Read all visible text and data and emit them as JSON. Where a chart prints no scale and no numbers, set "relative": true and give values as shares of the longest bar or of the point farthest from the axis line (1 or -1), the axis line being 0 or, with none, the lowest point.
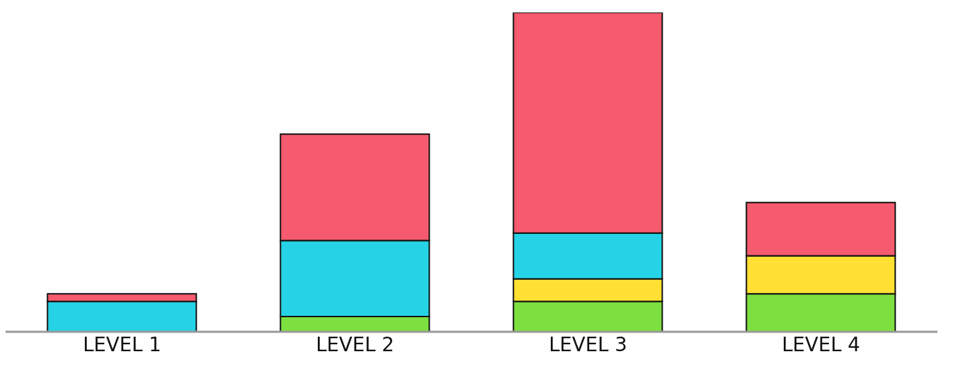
{
  "chart_data": {
    "type": "bar",
    "stacked": true,
    "relative": true,
    "categories": [
      "LEVEL 1",
      "LEVEL 2",
      "LEVEL 3",
      "LEVEL 4"
    ],
    "series": [
      {
        "color": "#7ee040",
        "values": [
          null,
          0.048,
          0.095,
          0.119
        ]
      },
      {
        "color": "#ffe033",
        "values": [
          null,
          null,
          0.071,
          0.119
        ]
      },
      {
        "color": "#26d3e6",
        "values": [
          0.095,
          0.238,
          0.143,
          null
        ]
      },
      {
        "color": "#f55a6e",
        "values": [
          0.024,
          0.333,
          0.691,
          0.167
        ]
      }
    ],
    "grid": false,
    "legend": false
  }
}
